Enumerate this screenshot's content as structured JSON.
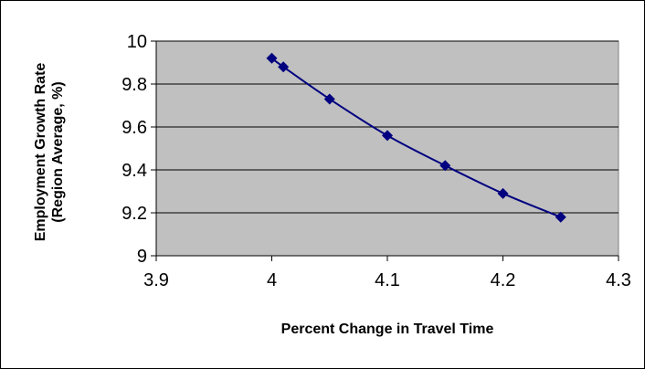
{
  "chart_data": {
    "type": "line",
    "title": "",
    "xlabel": "Percent Change in Travel Time",
    "ylabel_line1": "Employment Growth Rate",
    "ylabel_line2": "(Region Average, %)",
    "xlim": [
      3.9,
      4.3
    ],
    "ylim": [
      9,
      10
    ],
    "x_ticks": [
      "3.9",
      "4",
      "4.1",
      "4.2",
      "4.3"
    ],
    "y_ticks": [
      "9",
      "9.2",
      "9.4",
      "9.6",
      "9.8",
      "10"
    ],
    "grid": "horizontal",
    "legend": "none",
    "smoothed": true,
    "marker": "diamond",
    "series": [
      {
        "x": [
          4.0,
          4.01,
          4.05,
          4.1,
          4.15,
          4.2,
          4.25
        ],
        "y": [
          9.92,
          9.88,
          9.73,
          9.56,
          9.42,
          9.29,
          9.18
        ]
      }
    ],
    "colors": {
      "plot_background": "#c0c0c0",
      "series": "#000080",
      "gridline": "#000000",
      "axis": "#000000"
    }
  }
}
